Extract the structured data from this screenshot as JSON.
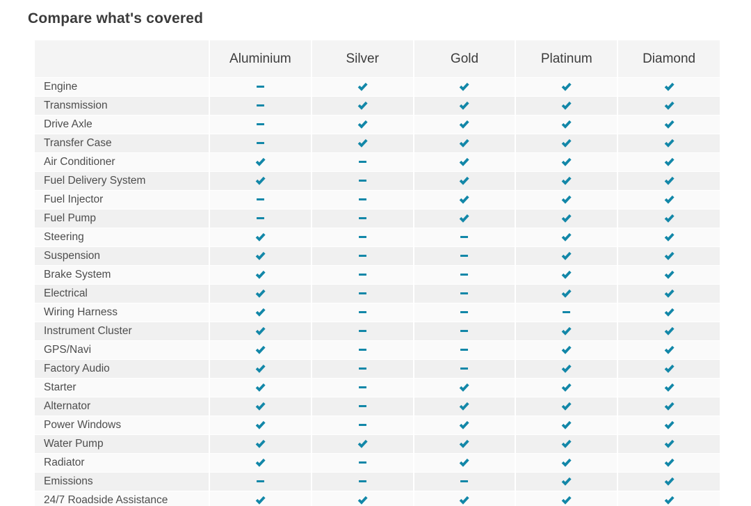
{
  "page": {
    "title": "Compare what's covered"
  },
  "table": {
    "columns": [
      "Aluminium",
      "Silver",
      "Gold",
      "Platinum",
      "Diamond"
    ],
    "rows": [
      {
        "label": "Engine",
        "values": [
          "dash",
          "check",
          "check",
          "check",
          "check"
        ]
      },
      {
        "label": "Transmission",
        "values": [
          "dash",
          "check",
          "check",
          "check",
          "check"
        ]
      },
      {
        "label": "Drive Axle",
        "values": [
          "dash",
          "check",
          "check",
          "check",
          "check"
        ]
      },
      {
        "label": "Transfer Case",
        "values": [
          "dash",
          "check",
          "check",
          "check",
          "check"
        ]
      },
      {
        "label": "Air Conditioner",
        "values": [
          "check",
          "dash",
          "check",
          "check",
          "check"
        ]
      },
      {
        "label": "Fuel Delivery System",
        "values": [
          "check",
          "dash",
          "check",
          "check",
          "check"
        ]
      },
      {
        "label": "Fuel Injector",
        "values": [
          "dash",
          "dash",
          "check",
          "check",
          "check"
        ]
      },
      {
        "label": "Fuel Pump",
        "values": [
          "dash",
          "dash",
          "check",
          "check",
          "check"
        ]
      },
      {
        "label": "Steering",
        "values": [
          "check",
          "dash",
          "dash",
          "check",
          "check"
        ]
      },
      {
        "label": "Suspension",
        "values": [
          "check",
          "dash",
          "dash",
          "check",
          "check"
        ]
      },
      {
        "label": "Brake System",
        "values": [
          "check",
          "dash",
          "dash",
          "check",
          "check"
        ]
      },
      {
        "label": "Electrical",
        "values": [
          "check",
          "dash",
          "dash",
          "check",
          "check"
        ]
      },
      {
        "label": "Wiring Harness",
        "values": [
          "check",
          "dash",
          "dash",
          "dash",
          "check"
        ]
      },
      {
        "label": "Instrument Cluster",
        "values": [
          "check",
          "dash",
          "dash",
          "check",
          "check"
        ]
      },
      {
        "label": "GPS/Navi",
        "values": [
          "check",
          "dash",
          "dash",
          "check",
          "check"
        ]
      },
      {
        "label": "Factory Audio",
        "values": [
          "check",
          "dash",
          "dash",
          "check",
          "check"
        ]
      },
      {
        "label": "Starter",
        "values": [
          "check",
          "dash",
          "check",
          "check",
          "check"
        ]
      },
      {
        "label": "Alternator",
        "values": [
          "check",
          "dash",
          "check",
          "check",
          "check"
        ]
      },
      {
        "label": "Power Windows",
        "values": [
          "check",
          "dash",
          "check",
          "check",
          "check"
        ]
      },
      {
        "label": "Water Pump",
        "values": [
          "check",
          "check",
          "check",
          "check",
          "check"
        ]
      },
      {
        "label": "Radiator",
        "values": [
          "check",
          "dash",
          "check",
          "check",
          "check"
        ]
      },
      {
        "label": "Emissions",
        "values": [
          "dash",
          "dash",
          "dash",
          "check",
          "check"
        ]
      },
      {
        "label": "24/7 Roadside Assistance",
        "values": [
          "check",
          "check",
          "check",
          "check",
          "check"
        ]
      }
    ]
  },
  "icons": {
    "covered": "check-icon",
    "not_covered": "dash-icon"
  },
  "colors": {
    "accent_teal": "#1287A8",
    "header_bg": "#f4f4f4",
    "row_odd_bg": "#fafafa",
    "row_even_bg": "#f0f0f0",
    "title_text": "#3b3b3b",
    "row_label_text": "#4d4d4d"
  }
}
